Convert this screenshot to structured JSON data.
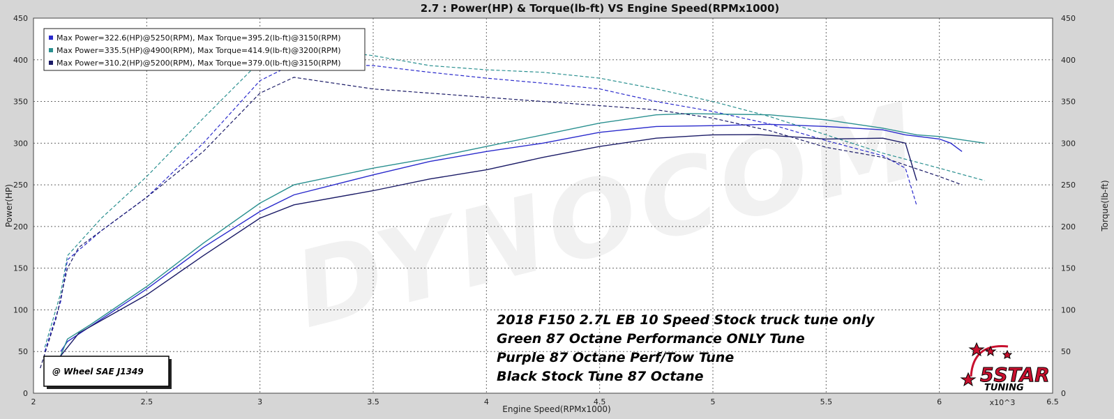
{
  "chart_data": {
    "type": "line",
    "title": "2.7 : Power(HP) & Torque(lb-ft) VS Engine Speed(RPMx1000)",
    "xlabel": "Engine Speed(RPMx1000)",
    "ylabel_left": "Power(HP)",
    "ylabel_right": "Torque(lb-ft)",
    "x_multiplier_label": "x10^3",
    "xlim": [
      2,
      6.5
    ],
    "ylim": [
      0,
      450
    ],
    "x_ticks": [
      "2",
      "2.5",
      "3",
      "3.5",
      "4",
      "4.5",
      "5",
      "5.5",
      "6",
      "6.5"
    ],
    "y_ticks": [
      "0",
      "50",
      "100",
      "150",
      "200",
      "250",
      "300",
      "350",
      "400",
      "450"
    ],
    "grid": true,
    "legend_placement": "top-left",
    "watermark": "DYNOCOM",
    "series": [
      {
        "legend": "Max Power=322.6(HP)@5250(RPM), Max Torque=395.2(lb-ft)@3150(RPM)",
        "color": "#2a2acc",
        "power": [
          [
            2.12,
            50
          ],
          [
            2.15,
            62
          ],
          [
            2.25,
            80
          ],
          [
            2.5,
            125
          ],
          [
            2.75,
            175
          ],
          [
            3.0,
            218
          ],
          [
            3.15,
            238
          ],
          [
            3.5,
            262
          ],
          [
            3.75,
            278
          ],
          [
            4.0,
            290
          ],
          [
            4.25,
            300
          ],
          [
            4.5,
            313
          ],
          [
            4.75,
            320
          ],
          [
            5.0,
            321
          ],
          [
            5.25,
            322.6
          ],
          [
            5.5,
            320
          ],
          [
            5.75,
            316
          ],
          [
            5.85,
            310
          ],
          [
            6.0,
            305
          ],
          [
            6.05,
            300
          ],
          [
            6.1,
            290
          ]
        ],
        "torque": [
          [
            2.05,
            50
          ],
          [
            2.12,
            110
          ],
          [
            2.15,
            160
          ],
          [
            2.3,
            195
          ],
          [
            2.5,
            235
          ],
          [
            2.75,
            300
          ],
          [
            3.0,
            375
          ],
          [
            3.15,
            395.2
          ],
          [
            3.5,
            393
          ],
          [
            3.75,
            385
          ],
          [
            4.0,
            378
          ],
          [
            4.25,
            372
          ],
          [
            4.5,
            365
          ],
          [
            4.75,
            350
          ],
          [
            5.0,
            338
          ],
          [
            5.25,
            323
          ],
          [
            5.5,
            303
          ],
          [
            5.75,
            285
          ],
          [
            5.85,
            270
          ],
          [
            5.9,
            225
          ]
        ]
      },
      {
        "legend": "Max Power=335.5(HP)@4900(RPM), Max Torque=414.9(lb-ft)@3200(RPM)",
        "color": "#2a9090",
        "power": [
          [
            2.12,
            45
          ],
          [
            2.15,
            65
          ],
          [
            2.25,
            82
          ],
          [
            2.5,
            128
          ],
          [
            2.75,
            180
          ],
          [
            3.0,
            228
          ],
          [
            3.15,
            250
          ],
          [
            3.5,
            270
          ],
          [
            3.75,
            282
          ],
          [
            4.0,
            296
          ],
          [
            4.25,
            310
          ],
          [
            4.5,
            324
          ],
          [
            4.75,
            334
          ],
          [
            4.9,
            335.5
          ],
          [
            5.0,
            335
          ],
          [
            5.25,
            334
          ],
          [
            5.5,
            328
          ],
          [
            5.75,
            318
          ],
          [
            5.9,
            310
          ],
          [
            6.0,
            308
          ],
          [
            6.2,
            300
          ]
        ],
        "torque": [
          [
            2.05,
            55
          ],
          [
            2.12,
            120
          ],
          [
            2.15,
            165
          ],
          [
            2.3,
            210
          ],
          [
            2.5,
            260
          ],
          [
            2.75,
            330
          ],
          [
            3.0,
            398
          ],
          [
            3.2,
            414.9
          ],
          [
            3.5,
            405
          ],
          [
            3.75,
            393
          ],
          [
            4.0,
            388
          ],
          [
            4.25,
            385
          ],
          [
            4.5,
            378
          ],
          [
            4.75,
            365
          ],
          [
            5.0,
            350
          ],
          [
            5.25,
            332
          ],
          [
            5.5,
            310
          ],
          [
            5.75,
            288
          ],
          [
            6.0,
            270
          ],
          [
            6.2,
            255
          ]
        ]
      },
      {
        "legend": "Max Power=310.2(HP)@5200(RPM), Max Torque=379.0(lb-ft)@3150(RPM)",
        "color": "#1a1a66",
        "power": [
          [
            2.1,
            38
          ],
          [
            2.2,
            72
          ],
          [
            2.5,
            118
          ],
          [
            2.75,
            165
          ],
          [
            3.0,
            210
          ],
          [
            3.15,
            226
          ],
          [
            3.5,
            243
          ],
          [
            3.75,
            257
          ],
          [
            4.0,
            268
          ],
          [
            4.25,
            283
          ],
          [
            4.5,
            296
          ],
          [
            4.75,
            306
          ],
          [
            5.0,
            310
          ],
          [
            5.2,
            310.2
          ],
          [
            5.5,
            305
          ],
          [
            5.75,
            306
          ],
          [
            5.85,
            300
          ],
          [
            5.9,
            255
          ]
        ],
        "torque": [
          [
            2.03,
            30
          ],
          [
            2.1,
            90
          ],
          [
            2.15,
            150
          ],
          [
            2.2,
            175
          ],
          [
            2.5,
            235
          ],
          [
            2.75,
            290
          ],
          [
            3.0,
            360
          ],
          [
            3.15,
            379.0
          ],
          [
            3.5,
            365
          ],
          [
            3.75,
            360
          ],
          [
            4.0,
            355
          ],
          [
            4.25,
            350
          ],
          [
            4.5,
            345
          ],
          [
            4.75,
            340
          ],
          [
            5.0,
            330
          ],
          [
            5.25,
            315
          ],
          [
            5.5,
            295
          ],
          [
            5.75,
            283
          ],
          [
            6.0,
            260
          ],
          [
            6.1,
            250
          ]
        ]
      }
    ],
    "annotations": [
      "2018 F150 2.7L EB 10 Speed Stock truck tune only",
      "Green 87 Octane Performance ONLY Tune",
      "Purple 87 Octane Perf/Tow Tune",
      "Black Stock Tune 87 Octane"
    ],
    "dyno_note": "@ Wheel SAE J1349"
  },
  "logo": {
    "brand": "5STAR",
    "sub": "TUNING",
    "accent": "#c8102e"
  }
}
